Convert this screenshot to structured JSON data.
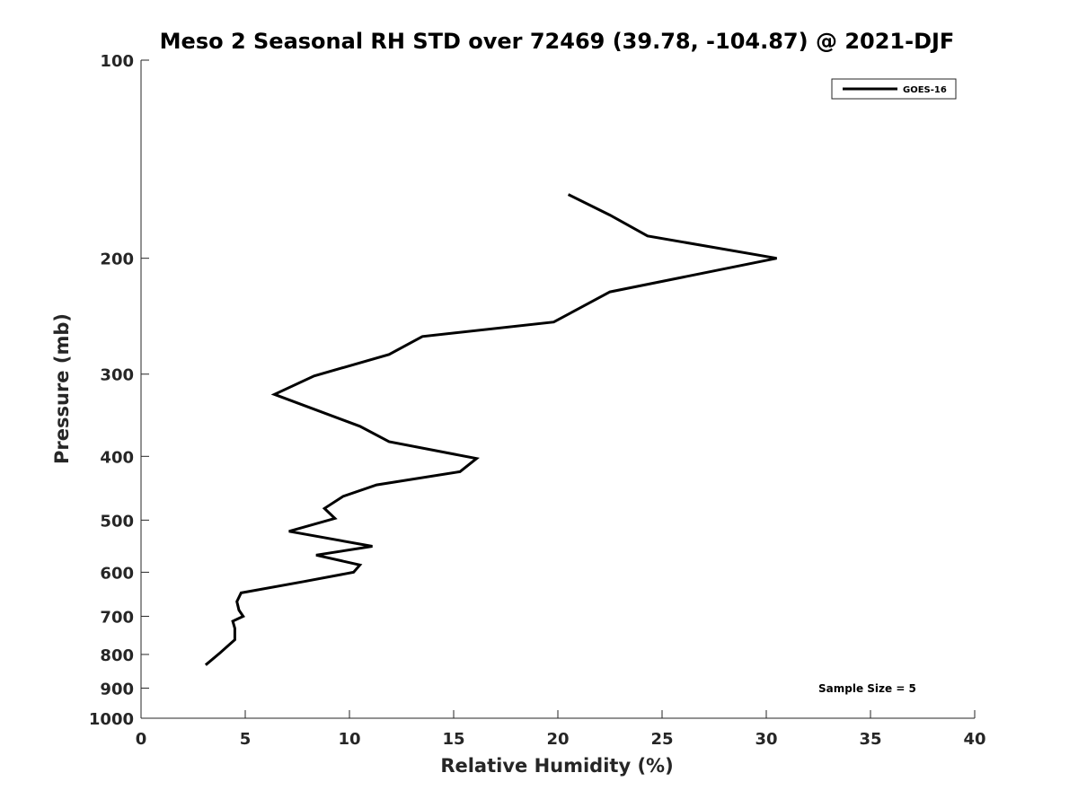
{
  "chart_data": {
    "type": "line",
    "title": "Meso 2 Seasonal RH STD over 72469 (39.78, -104.87) @ 2021-DJF",
    "xlabel": "Relative Humidity (%)",
    "ylabel": "Pressure (mb)",
    "xlim": [
      0,
      40
    ],
    "ylim": [
      100,
      1000
    ],
    "yscale": "log",
    "y_reversed": true,
    "grid": false,
    "xticks": [
      0,
      5,
      10,
      15,
      20,
      25,
      30,
      35,
      40
    ],
    "xtick_labels": [
      "0",
      "5",
      "10",
      "15",
      "20",
      "25",
      "30",
      "35",
      "40"
    ],
    "yticks": [
      100,
      200,
      300,
      400,
      500,
      600,
      700,
      800,
      900,
      1000
    ],
    "ytick_labels": [
      "100",
      "200",
      "300",
      "400",
      "500",
      "600",
      "700",
      "800",
      "900",
      "1000"
    ],
    "legend_position": "top-right",
    "annotation": "Sample Size = 5",
    "line_color": "#000000",
    "series": [
      {
        "name": "GOES-16",
        "x": [
          20.5,
          22.5,
          24.3,
          30.5,
          22.5,
          19.8,
          13.5,
          11.9,
          8.3,
          6.4,
          10.5,
          11.9,
          16.1,
          15.3,
          11.3,
          9.7,
          8.8,
          9.3,
          7.1,
          11.1,
          8.4,
          10.5,
          10.2,
          7.8,
          4.8,
          4.6,
          4.7,
          4.9,
          4.4,
          4.5,
          4.5,
          3.8,
          3.1
        ],
        "y": [
          160,
          172,
          185,
          200,
          225,
          250,
          263,
          280,
          302,
          322,
          360,
          380,
          403,
          422,
          442,
          460,
          480,
          497,
          520,
          548,
          565,
          585,
          600,
          620,
          645,
          665,
          685,
          700,
          712,
          730,
          760,
          795,
          830
        ]
      }
    ]
  }
}
